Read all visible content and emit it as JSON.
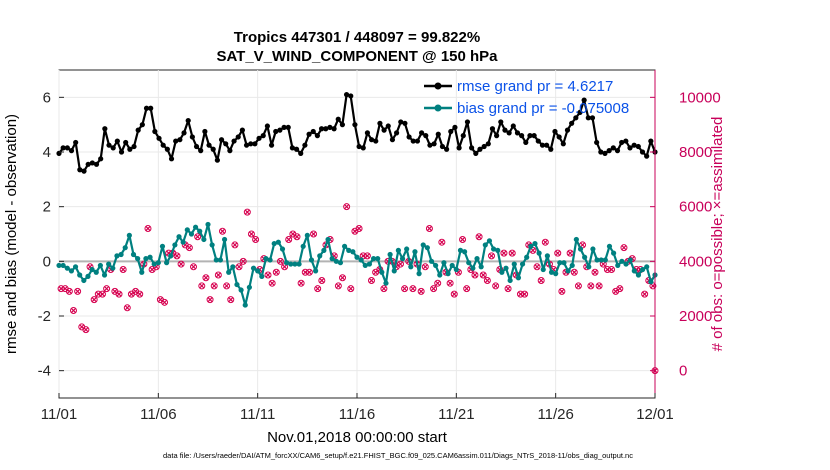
{
  "chart_data": {
    "type": "line",
    "title": "Tropics 447301 / 448097 = 99.822%",
    "subtitle": "SAT_V_WIND_COMPONENT @ 150 hPa",
    "xlabel": "Nov.01,2018 00:00:00 start",
    "ylabel": "rmse and bias (model - observation)",
    "ylabel_right": "# of obs: o=possible; ×=assimilated",
    "ylim": [
      -5,
      7
    ],
    "ylim_right": [
      -1000,
      11000
    ],
    "xlim": [
      1,
      31
    ],
    "y_ticks": [
      "-4",
      "-2",
      "0",
      "2",
      "4",
      "6"
    ],
    "y_ticks_right": [
      "0",
      "2000",
      "4000",
      "6000",
      "8000",
      "10000"
    ],
    "x_ticks": [
      "11/01",
      "11/06",
      "11/11",
      "11/16",
      "11/21",
      "11/26",
      "12/01"
    ],
    "zero_line": 0,
    "colors": {
      "rmse": "#000000",
      "bias": "#008080",
      "obs": "#d6004f",
      "right_axis": "#c8005a",
      "legend_text": "#0b52e8",
      "zero": "#b3b3b3"
    },
    "series": [
      {
        "name": "rmse grand pr = 4.6217",
        "values": [
          3.95,
          4.15,
          4.15,
          4.05,
          4.35,
          3.35,
          3.3,
          3.55,
          3.6,
          3.55,
          3.75,
          4.85,
          4.25,
          4.15,
          4.4,
          4.0,
          4.35,
          4.1,
          4.2,
          4.8,
          5.0,
          5.6,
          5.6,
          4.75,
          4.5,
          4.25,
          4.1,
          3.75,
          4.4,
          4.45,
          4.7,
          5.15,
          4.55,
          4.2,
          4.05,
          4.75,
          4.25,
          4.1,
          3.7,
          4.45,
          4.3,
          4.05,
          4.4,
          4.55,
          4.8,
          4.25,
          4.3,
          4.3,
          4.5,
          4.6,
          4.95,
          4.25,
          4.75,
          4.8,
          4.9,
          4.9,
          4.15,
          4.1,
          3.95,
          4.25,
          4.65,
          4.75,
          4.6,
          4.85,
          4.85,
          4.9,
          4.85,
          5.2,
          5.0,
          6.1,
          6.05,
          5.0,
          4.2,
          4.15,
          4.7,
          4.45,
          4.4,
          5.05,
          4.8,
          4.95,
          4.45,
          4.7,
          5.1,
          5.05,
          4.55,
          4.4,
          4.4,
          4.7,
          4.6,
          4.25,
          4.3,
          4.65,
          4.2,
          4.1,
          4.75,
          4.9,
          4.15,
          4.6,
          5.1,
          4.15,
          3.95,
          4.1,
          4.2,
          4.3,
          4.85,
          4.6,
          5.1,
          4.8,
          4.7,
          4.95,
          4.7,
          4.6,
          4.35,
          4.6,
          4.6,
          4.4,
          4.25,
          4.25,
          4.1,
          4.75,
          4.55,
          4.3,
          4.8,
          5.05,
          5.25,
          5.45,
          5.9,
          5.25,
          5.25,
          4.35,
          4.0,
          3.95,
          4.05,
          4.15,
          4.05,
          4.35,
          4.4,
          4.15,
          4.25,
          4.2,
          4.0,
          3.85,
          4.4,
          4.0
        ]
      },
      {
        "name": "bias grand pr = -0.075008",
        "values": [
          -0.15,
          -0.15,
          -0.25,
          -0.35,
          -0.2,
          -0.5,
          -0.7,
          -0.55,
          -0.3,
          -0.4,
          -0.15,
          -0.5,
          -0.1,
          -0.25,
          0.2,
          0.25,
          0.5,
          0.95,
          0.25,
          0.1,
          -0.4,
          0.1,
          0.15,
          -0.1,
          -0.05,
          0.55,
          -0.05,
          0.2,
          0.6,
          0.9,
          0.7,
          1.15,
          1.0,
          1.25,
          1.1,
          0.8,
          1.35,
          0.6,
          0.05,
          0.05,
          0.8,
          -0.4,
          -0.2,
          -0.85,
          -1.05,
          -1.6,
          -0.95,
          -0.25,
          -0.35,
          -0.55,
          0.1,
          0.05,
          0.65,
          0.7,
          0.45,
          -0.05,
          -0.1,
          -0.1,
          -0.1,
          0.55,
          0.95,
          0.05,
          -0.35,
          0.2,
          0.4,
          0.8,
          0.1,
          0.0,
          -0.05,
          0.55,
          0.4,
          0.35,
          0.15,
          0.05,
          -0.15,
          -0.1,
          0.1,
          0.1,
          -0.4,
          -0.8,
          0.25,
          -0.35,
          0.4,
          0.1,
          0.45,
          -0.2,
          0.35,
          -0.45,
          0.6,
          0.5,
          0.0,
          -0.15,
          -0.5,
          -0.05,
          -0.45,
          -0.15,
          -0.3,
          0.4,
          0.35,
          -0.05,
          -0.25,
          0.1,
          -0.2,
          0.6,
          0.75,
          0.45,
          0.4,
          -0.4,
          -0.25,
          -0.7,
          -0.1,
          -0.6,
          -0.1,
          0.15,
          0.55,
          0.65,
          0.3,
          -0.3,
          0.2,
          -0.4,
          -0.45,
          -0.05,
          -0.05,
          -0.35,
          -0.15,
          0.8,
          0.45,
          0.15,
          -0.2,
          0.45,
          0.05,
          0.05,
          0.05,
          0.55,
          0.3,
          -0.15,
          0.0,
          -0.1,
          0.05,
          -0.35,
          -0.5,
          -0.3,
          -0.2,
          -0.75,
          -0.5
        ]
      },
      {
        "name": "obs_possible_assimilated",
        "values": [
          3000,
          3000,
          2900,
          2200,
          2900,
          1600,
          1500,
          3800,
          2600,
          2800,
          2800,
          3000,
          3700,
          2900,
          2800,
          3700,
          2300,
          2800,
          2900,
          2800,
          3900,
          5200,
          3700,
          3800,
          2600,
          2500,
          4300,
          4300,
          4200,
          3900,
          4600,
          4500,
          3800,
          4900,
          3100,
          3400,
          2600,
          3100,
          3500,
          5100,
          3100,
          2600,
          4600,
          3800,
          4000,
          5800,
          5000,
          4800,
          3700,
          4100,
          3500,
          3200,
          3600,
          4000,
          3800,
          4800,
          5000,
          4900,
          3200,
          3600,
          3600,
          5000,
          3000,
          3300,
          4600,
          4800,
          4200,
          3100,
          3400,
          6000,
          3000,
          5100,
          5200,
          4200,
          4200,
          3300,
          3600,
          3700,
          3000,
          4000,
          4000,
          3800,
          3900,
          3000,
          4000,
          3000,
          3900,
          2900,
          3800,
          5200,
          3000,
          3200,
          4700,
          3600,
          3200,
          2800,
          3600,
          4800,
          3000,
          3700,
          3500,
          4900,
          3500,
          3300,
          4200,
          3100,
          3700,
          4300,
          3000,
          4300,
          3500,
          2800,
          2800,
          4600,
          4400,
          3800,
          3300,
          4700,
          3900,
          3700,
          4300,
          2900,
          3600,
          4300,
          3600,
          3100,
          4600,
          3800,
          3100,
          3600,
          3100,
          3900,
          3700,
          3700,
          2900,
          3000,
          4500,
          4000,
          4100,
          3700,
          3700,
          2800,
          3300,
          3100
        ]
      }
    ],
    "obs_right_edge_value": 0
  },
  "footer": "data file: /Users/raeder/DAI/ATM_forcXX/CAM6_setup/f.e21.FHIST_BGC.f09_025.CAM6assim.011/Diags_NTrS_2018-11/obs_diag_output.nc"
}
